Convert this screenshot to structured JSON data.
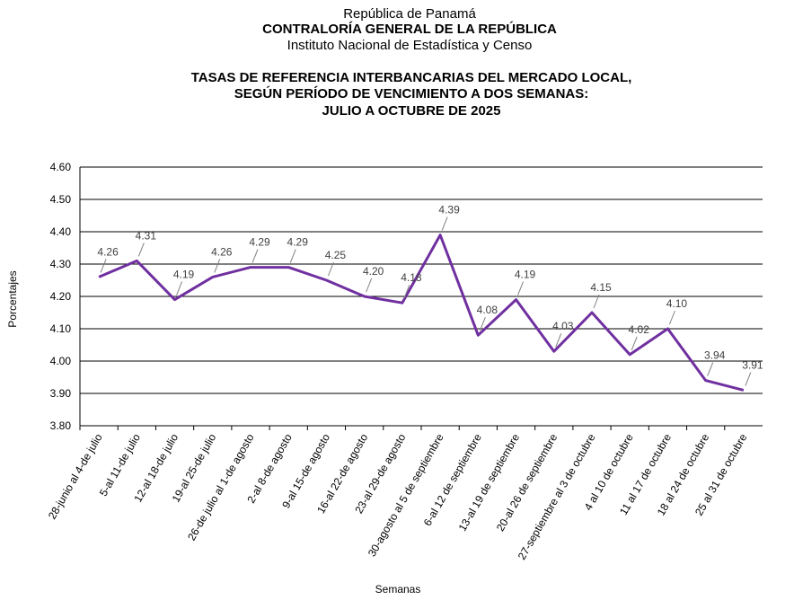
{
  "chart_data": {
    "type": "line",
    "header": [
      "República de Panamá",
      "CONTRALORÍA GENERAL DE LA REPÚBLICA",
      "Instituto  Nacional de Estadística y Censo"
    ],
    "title": [
      "TASAS DE REFERENCIA INTERBANCARIAS DEL MERCADO LOCAL,",
      "SEGÚN PERÍODO DE VENCIMIENTO A DOS SEMANAS:",
      "JULIO A OCTUBRE DE 2025"
    ],
    "y_label": "Porcentajes",
    "x_label": "Semanas",
    "categories": [
      "28-junio al 4-de julio",
      "5-al 11-de julio",
      "12-al 18-de julio",
      "19-al 25-de julio",
      "26-de julio al 1-de agosto",
      "2-al 8-de agosto",
      "9-al 15-de agosto",
      "16-al 22-de agosto",
      "23-al 29-de agosto",
      "30-agosto al 5 de septiembre",
      "6-al 12 de septiembre",
      "13-al 19 de septiembre",
      "20-al 26 de septiembre",
      "27-septiembre al 3 de octubre",
      "4 al 10 de octubre",
      "11 al 17 de octubre",
      "18 al 24 de octubre",
      "25 al 31 de octubre"
    ],
    "values": [
      4.26,
      4.31,
      4.19,
      4.26,
      4.29,
      4.29,
      4.25,
      4.2,
      4.18,
      4.39,
      4.08,
      4.19,
      4.03,
      4.15,
      4.02,
      4.1,
      3.94,
      3.91
    ],
    "value_labels": [
      "4.26",
      "4.31",
      "4.19",
      "4.26",
      "4.29",
      "4.29",
      "4.25",
      "4.20",
      "4.18",
      "4.39",
      "4.08",
      "4.19",
      "4.03",
      "4.15",
      "4.02",
      "4.10",
      "3.94",
      "3.91"
    ],
    "color": "#7030a0",
    "ylim": [
      3.8,
      4.6
    ],
    "yticks": [
      {
        "value": 3.8,
        "label": "3.80"
      },
      {
        "value": 3.9,
        "label": "3.90"
      },
      {
        "value": 4.0,
        "label": "4.00"
      },
      {
        "value": 4.1,
        "label": "4.10"
      },
      {
        "value": 4.2,
        "label": "4.20"
      },
      {
        "value": 4.3,
        "label": "4.30"
      },
      {
        "value": 4.4,
        "label": "4.40"
      },
      {
        "value": 4.5,
        "label": "4.50"
      },
      {
        "value": 4.6,
        "label": "4.60"
      }
    ],
    "grid": true
  }
}
